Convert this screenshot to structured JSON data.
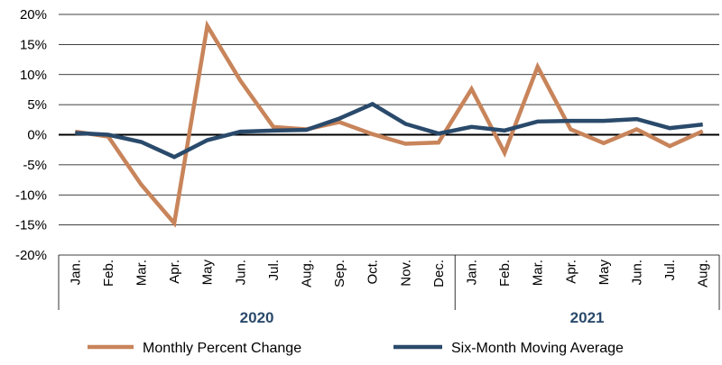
{
  "chart_data": {
    "type": "line",
    "categories": [
      "Jan.",
      "Feb.",
      "Mar.",
      "Apr.",
      "May",
      "Jun.",
      "Jul.",
      "Aug.",
      "Sep.",
      "Oct.",
      "Nov.",
      "Dec.",
      "Jan.",
      "Feb.",
      "Mar.",
      "Apr.",
      "May",
      "Jun.",
      "Jul.",
      "Aug."
    ],
    "groups": [
      {
        "label": "2020",
        "count": 12
      },
      {
        "label": "2021",
        "count": 8
      }
    ],
    "series": [
      {
        "name": "Monthly Percent Change",
        "color": "#C8845A",
        "values": [
          0.5,
          -0.3,
          -8.3,
          -14.7,
          18.1,
          9.0,
          1.3,
          0.9,
          2.1,
          0.1,
          -1.5,
          -1.3,
          7.6,
          -3.0,
          11.3,
          0.9,
          -1.4,
          0.9,
          -1.9,
          0.6
        ]
      },
      {
        "name": "Six-Month Moving Average",
        "color": "#2A4A6B",
        "values": [
          0.3,
          0.0,
          -1.2,
          -3.7,
          -0.9,
          0.5,
          0.7,
          0.8,
          2.7,
          5.1,
          1.8,
          0.2,
          1.3,
          0.7,
          2.2,
          2.3,
          2.3,
          2.6,
          1.1,
          1.7
        ]
      }
    ],
    "ylim": [
      -20,
      20
    ],
    "yticks": [
      20,
      15,
      10,
      5,
      0,
      -5,
      -10,
      -15,
      -20
    ],
    "ytick_labels": [
      "20%",
      "15%",
      "10%",
      "5%",
      "0%",
      "-5%",
      "-10%",
      "-15%",
      "-20%"
    ],
    "title": "",
    "xlabel": "",
    "ylabel": "",
    "grid": true,
    "legend_position": "bottom"
  },
  "colors": {
    "year_label": "#2A4A6B",
    "grid": "#000000"
  }
}
